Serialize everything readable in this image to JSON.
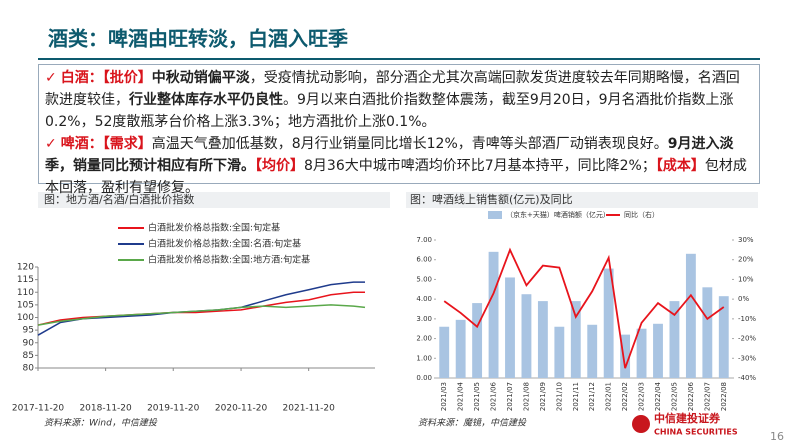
{
  "header": {
    "title": "酒类：啤酒由旺转淡，白酒入旺季"
  },
  "bullets": [
    {
      "marker": "✓",
      "segments": [
        {
          "text": "白酒：",
          "style": "red"
        },
        {
          "text": "【批价】",
          "style": "red"
        },
        {
          "text": "中秋动销偏平淡",
          "style": "bold"
        },
        {
          "text": "，受疫情扰动影响，部分酒企尤其次高端回款发货进度较去年同期略慢，名酒回款进度较佳，",
          "style": "normal"
        },
        {
          "text": "行业整体库存水平仍良性",
          "style": "bold"
        },
        {
          "text": "。9月以来白酒批价指数整体震荡，截至9月20日，9月名酒批价指数上涨0.2%，52度散瓶茅台价格上涨3.3%；地方酒批价上涨0.1%。",
          "style": "normal"
        }
      ]
    },
    {
      "marker": "✓",
      "segments": [
        {
          "text": "啤酒：",
          "style": "red"
        },
        {
          "text": "【需求】",
          "style": "red"
        },
        {
          "text": "高温天气叠加低基数，8月行业销量同比增长12%，青啤等头部酒厂动销表现良好。",
          "style": "normal"
        },
        {
          "text": "9月进入淡季，销量同比预计相应有所下滑。",
          "style": "bold"
        },
        {
          "text": "【均价】",
          "style": "red"
        },
        {
          "text": "8月36大中城市啤酒均价环比7月基本持平，同比降2%；",
          "style": "normal"
        },
        {
          "text": "【成本】",
          "style": "red"
        },
        {
          "text": "包材成本回落，盈利有望修复。",
          "style": "normal"
        }
      ]
    }
  ],
  "chart_data": [
    {
      "type": "line",
      "title": "图：地方酒/名酒/白酒批价指数",
      "source": "资料来源：Wind，中信建投",
      "x": [
        "2017-11-20",
        "2018-03-20",
        "2018-07-20",
        "2018-11-20",
        "2019-03-20",
        "2019-07-20",
        "2019-11-20",
        "2020-03-20",
        "2020-07-20",
        "2020-11-20",
        "2021-03-20",
        "2021-07-20",
        "2021-11-20",
        "2022-03-20",
        "2022-07-20",
        "2022-09-20"
      ],
      "series": [
        {
          "name": "白酒批发价格总指数:全国:旬定基",
          "color": "#e8141c",
          "values": [
            97,
            99,
            100,
            100.5,
            101,
            101.5,
            102,
            102,
            102.5,
            103,
            104.5,
            106,
            107,
            109,
            110,
            110
          ]
        },
        {
          "name": "白酒批发价格总指数:全国:名酒:旬定基",
          "color": "#1f3b8c",
          "values": [
            93,
            98,
            99.5,
            100,
            100.5,
            101,
            102,
            102.5,
            103,
            104,
            106.5,
            109,
            111,
            113,
            114,
            114
          ]
        },
        {
          "name": "白酒批发价格总指数:全国:地方酒:旬定基",
          "color": "#5aa84a",
          "values": [
            97,
            98.5,
            99.5,
            100.5,
            101,
            101.5,
            102,
            102.5,
            103,
            104,
            104.5,
            104,
            104.5,
            105,
            104.5,
            104
          ]
        }
      ],
      "xlim": [
        "2017-11-20",
        "2022-09-20"
      ],
      "xticks": [
        "2017-11-20",
        "2018-11-20",
        "2019-11-20",
        "2020-11-20",
        "2021-11-20"
      ],
      "ylim": [
        80,
        120
      ],
      "yticks": [
        80,
        85,
        90,
        95,
        100,
        105,
        110,
        115,
        120
      ]
    },
    {
      "type": "bar_line",
      "title": "图：啤酒线上销售额(亿元)及同比",
      "source": "资料来源：魔镜，中信建投",
      "categories": [
        "2021/03",
        "2021/04",
        "2021/05",
        "2021/06",
        "2021/07",
        "2021/08",
        "2021/09",
        "2021/10",
        "2021/11",
        "2021/12",
        "2022/01",
        "2022/02",
        "2022/03",
        "2022/04",
        "2022/05",
        "2022/06",
        "2022/07",
        "2022/08"
      ],
      "series": [
        {
          "name": "（京东+天猫）啤酒销额（亿元）",
          "type": "bar",
          "color": "#a9c4e2",
          "values": [
            2.6,
            2.95,
            3.8,
            6.4,
            5.1,
            4.25,
            3.9,
            2.6,
            3.9,
            2.7,
            5.55,
            2.2,
            2.5,
            2.75,
            3.9,
            6.3,
            4.6,
            4.15
          ]
        },
        {
          "name": "同比（右）",
          "type": "line",
          "axis": "y2",
          "color": "#e8141c",
          "values": [
            -1,
            -7,
            -14,
            3,
            25,
            7,
            17,
            16,
            -9,
            4,
            21,
            -35,
            -12,
            -2,
            -8,
            2,
            -10,
            -4
          ]
        }
      ],
      "ylim": [
        0,
        7
      ],
      "yticks": [
        {
          "value": 0,
          "label": "0.00"
        },
        {
          "value": 1,
          "label": "1.00"
        },
        {
          "value": 2,
          "label": "2.00"
        },
        {
          "value": 3,
          "label": "3.00"
        },
        {
          "value": 4,
          "label": "4.00"
        },
        {
          "value": 5,
          "label": "5.00"
        },
        {
          "value": 6,
          "label": "6.00"
        },
        {
          "value": 7,
          "label": "7.00"
        }
      ],
      "y2lim": [
        -40,
        30
      ],
      "y2ticks": [
        {
          "value": -40,
          "label": "-40%"
        },
        {
          "value": -30,
          "label": "-30%"
        },
        {
          "value": -20,
          "label": "-20%"
        },
        {
          "value": -10,
          "label": "-10%"
        },
        {
          "value": 0,
          "label": "0%"
        },
        {
          "value": 10,
          "label": "10%"
        },
        {
          "value": 20,
          "label": "20%"
        },
        {
          "value": 30,
          "label": "30%"
        }
      ]
    }
  ],
  "footer": {
    "logo_cn": "中信建投证券",
    "logo_en": "CHINA SECURITIES",
    "page": "16"
  }
}
